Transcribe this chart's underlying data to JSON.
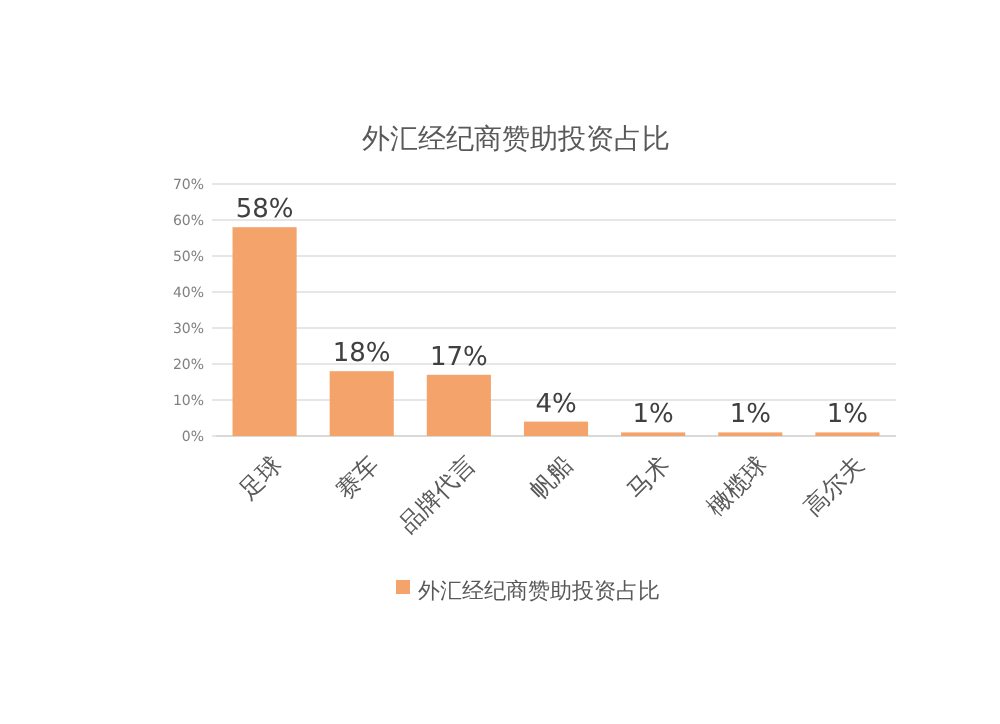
{
  "chart_data": {
    "type": "bar",
    "title": "外汇经纪商赞助投资占比",
    "categories": [
      "足球",
      "赛车",
      "品牌代言",
      "帆船",
      "马术",
      "橄榄球",
      "高尔夫"
    ],
    "series": [
      {
        "name": "外汇经纪商赞助投资占比",
        "color": "#f4a46a",
        "values": [
          58,
          18,
          17,
          4,
          1,
          1,
          1
        ],
        "value_labels": [
          "58%",
          "18%",
          "17%",
          "4%",
          "1%",
          "1%",
          "1%"
        ]
      }
    ],
    "ylim": [
      0,
      70
    ],
    "yticks": [
      {
        "value": 0,
        "label": "0%"
      },
      {
        "value": 10,
        "label": "10%"
      },
      {
        "value": 20,
        "label": "20%"
      },
      {
        "value": 30,
        "label": "30%"
      },
      {
        "value": 40,
        "label": "40%"
      },
      {
        "value": 50,
        "label": "50%"
      },
      {
        "value": 60,
        "label": "60%"
      },
      {
        "value": 70,
        "label": "70%"
      }
    ],
    "grid": "y",
    "legend": "bottom"
  }
}
